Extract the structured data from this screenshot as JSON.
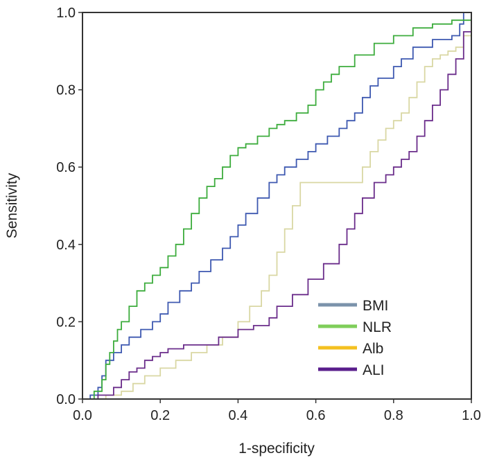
{
  "chart_data": {
    "type": "line",
    "title": "",
    "xlabel": "1-specificity",
    "ylabel": "Sensitivity",
    "xlim": [
      0,
      1
    ],
    "ylim": [
      0,
      1
    ],
    "x_ticks": [
      "0.0",
      "0.2",
      "0.4",
      "0.6",
      "0.8",
      "1.0"
    ],
    "y_ticks": [
      "0.0",
      "0.2",
      "0.4",
      "0.6",
      "0.8",
      "1.0"
    ],
    "grid": false,
    "legend_position": "bottom-right",
    "series": [
      {
        "name": "BMI",
        "color": "#3d58b0",
        "legend_color": "#7b93ab",
        "x": [
          0,
          0.02,
          0.04,
          0.05,
          0.06,
          0.08,
          0.1,
          0.12,
          0.15,
          0.18,
          0.2,
          0.22,
          0.25,
          0.28,
          0.3,
          0.33,
          0.36,
          0.38,
          0.4,
          0.42,
          0.45,
          0.48,
          0.5,
          0.52,
          0.55,
          0.58,
          0.6,
          0.63,
          0.66,
          0.68,
          0.7,
          0.72,
          0.74,
          0.76,
          0.8,
          0.82,
          0.85,
          0.9,
          0.95,
          0.97,
          0.98,
          1.0
        ],
        "y": [
          0,
          0.01,
          0.03,
          0.06,
          0.1,
          0.12,
          0.14,
          0.16,
          0.18,
          0.2,
          0.22,
          0.25,
          0.28,
          0.3,
          0.33,
          0.36,
          0.39,
          0.42,
          0.45,
          0.48,
          0.52,
          0.56,
          0.58,
          0.6,
          0.62,
          0.64,
          0.66,
          0.68,
          0.7,
          0.72,
          0.74,
          0.78,
          0.81,
          0.83,
          0.86,
          0.88,
          0.91,
          0.93,
          0.94,
          0.97,
          1.0,
          1.0
        ]
      },
      {
        "name": "NLR",
        "color": "#3cac3c",
        "legend_color": "#7fce5a",
        "x": [
          0,
          0.03,
          0.05,
          0.06,
          0.07,
          0.08,
          0.09,
          0.1,
          0.12,
          0.14,
          0.16,
          0.18,
          0.2,
          0.22,
          0.24,
          0.26,
          0.28,
          0.3,
          0.32,
          0.34,
          0.36,
          0.38,
          0.4,
          0.42,
          0.45,
          0.48,
          0.5,
          0.52,
          0.55,
          0.58,
          0.6,
          0.62,
          0.64,
          0.66,
          0.7,
          0.75,
          0.8,
          0.85,
          0.9,
          0.95,
          1.0
        ],
        "y": [
          0,
          0.02,
          0.05,
          0.09,
          0.12,
          0.15,
          0.18,
          0.2,
          0.24,
          0.28,
          0.3,
          0.32,
          0.34,
          0.37,
          0.4,
          0.44,
          0.48,
          0.52,
          0.55,
          0.57,
          0.6,
          0.63,
          0.65,
          0.66,
          0.68,
          0.7,
          0.71,
          0.72,
          0.74,
          0.76,
          0.8,
          0.82,
          0.84,
          0.86,
          0.89,
          0.92,
          0.94,
          0.96,
          0.97,
          0.98,
          1.0
        ]
      },
      {
        "name": "Alb",
        "color": "#d9d7a3",
        "legend_color": "#f4c020",
        "x": [
          0,
          0.06,
          0.1,
          0.13,
          0.16,
          0.2,
          0.24,
          0.28,
          0.32,
          0.36,
          0.4,
          0.43,
          0.46,
          0.48,
          0.5,
          0.52,
          0.54,
          0.56,
          0.6,
          0.65,
          0.7,
          0.72,
          0.74,
          0.76,
          0.78,
          0.8,
          0.82,
          0.84,
          0.86,
          0.88,
          0.9,
          0.92,
          0.94,
          0.96,
          0.98,
          1.0
        ],
        "y": [
          0,
          0.01,
          0.02,
          0.04,
          0.06,
          0.08,
          0.1,
          0.12,
          0.14,
          0.16,
          0.2,
          0.24,
          0.28,
          0.32,
          0.38,
          0.44,
          0.5,
          0.56,
          0.56,
          0.56,
          0.56,
          0.6,
          0.64,
          0.67,
          0.7,
          0.72,
          0.74,
          0.78,
          0.82,
          0.86,
          0.88,
          0.89,
          0.9,
          0.91,
          0.94,
          1.0
        ]
      },
      {
        "name": "ALI",
        "color": "#6a2c8a",
        "legend_color": "#5a1e8c",
        "x": [
          0,
          0.04,
          0.08,
          0.1,
          0.12,
          0.14,
          0.16,
          0.18,
          0.2,
          0.22,
          0.24,
          0.26,
          0.3,
          0.35,
          0.4,
          0.44,
          0.48,
          0.5,
          0.54,
          0.58,
          0.62,
          0.66,
          0.68,
          0.7,
          0.72,
          0.75,
          0.78,
          0.8,
          0.82,
          0.84,
          0.86,
          0.88,
          0.9,
          0.92,
          0.94,
          0.96,
          0.98,
          1.0
        ],
        "y": [
          0,
          0.01,
          0.03,
          0.05,
          0.07,
          0.08,
          0.1,
          0.11,
          0.12,
          0.13,
          0.13,
          0.14,
          0.14,
          0.16,
          0.18,
          0.19,
          0.21,
          0.24,
          0.27,
          0.31,
          0.35,
          0.4,
          0.44,
          0.48,
          0.52,
          0.56,
          0.58,
          0.6,
          0.62,
          0.64,
          0.68,
          0.72,
          0.76,
          0.8,
          0.84,
          0.88,
          0.95,
          1.0
        ]
      }
    ]
  }
}
